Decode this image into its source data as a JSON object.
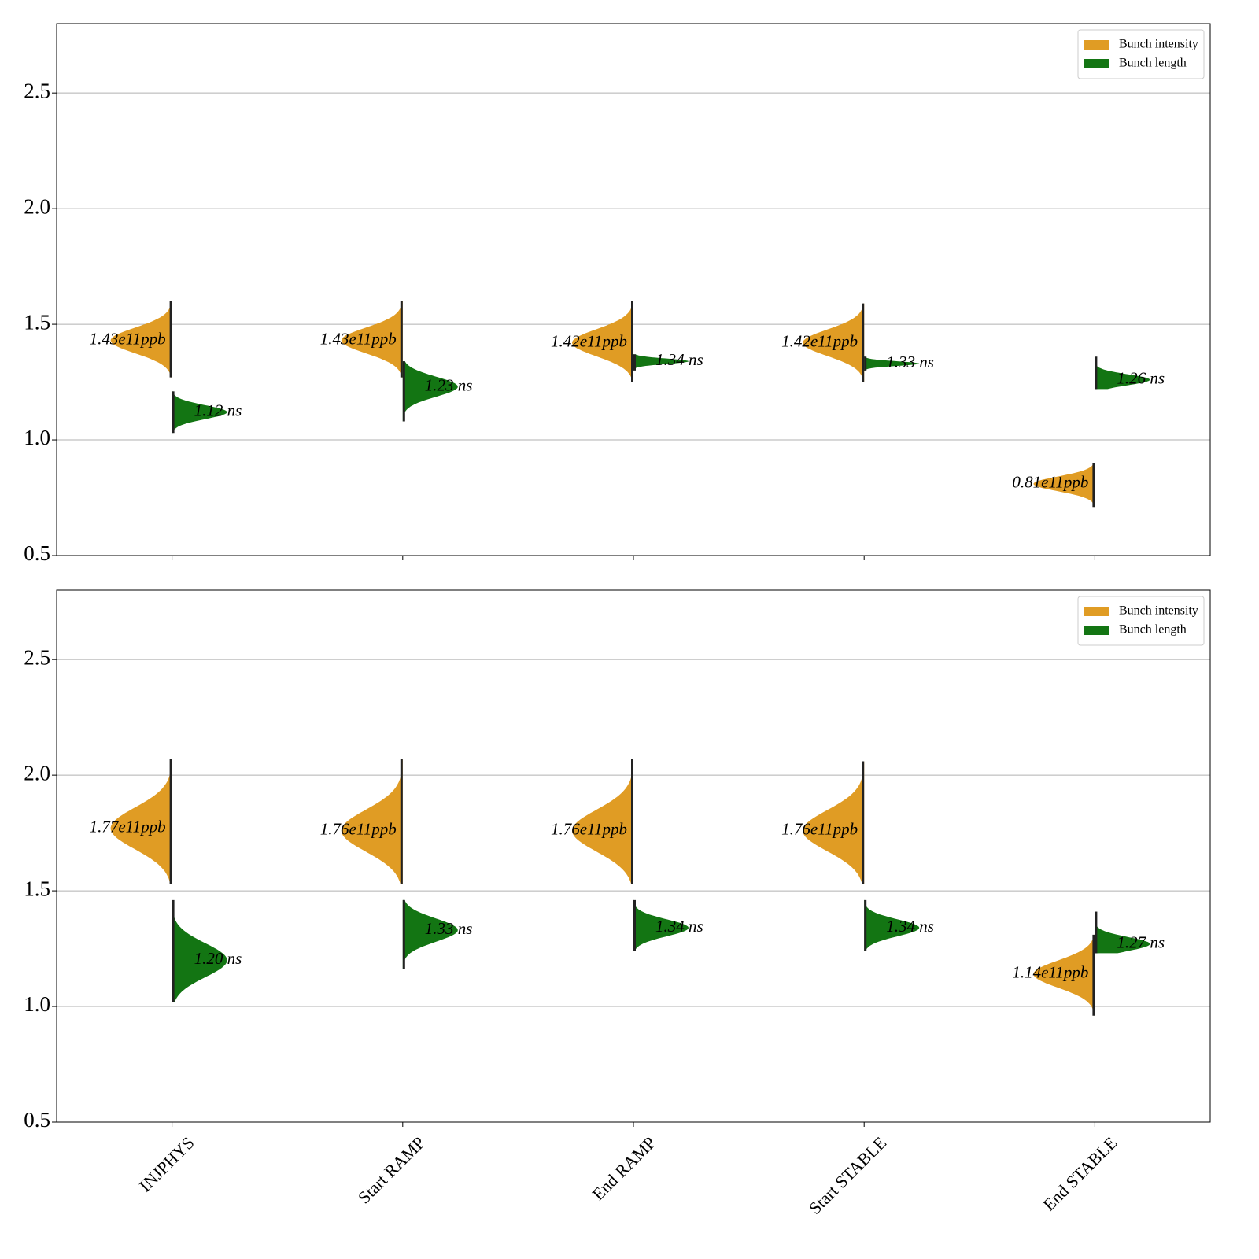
{
  "chart_data": [
    {
      "type": "violin",
      "categories": [
        null,
        null,
        null,
        null,
        null
      ],
      "series": [
        {
          "name": "Bunch intensity",
          "color": "#e09c24",
          "side": "left",
          "values": [
            1.43,
            1.43,
            1.42,
            1.42,
            0.81
          ],
          "value_labels": [
            "1.43e11ppb",
            "1.43e11ppb",
            "1.42e11ppb",
            "1.42e11ppb",
            "0.81e11ppb"
          ],
          "min": [
            1.27,
            1.27,
            1.25,
            1.25,
            0.71
          ],
          "max": [
            1.6,
            1.6,
            1.6,
            1.59,
            0.9
          ]
        },
        {
          "name": "Bunch length",
          "color": "#137513",
          "side": "right",
          "values": [
            1.12,
            1.23,
            1.34,
            1.33,
            1.26
          ],
          "value_labels": [
            "1.12 ns",
            "1.23 ns",
            "1.34 ns",
            "1.33 ns",
            "1.26 ns"
          ],
          "min": [
            1.03,
            1.08,
            1.3,
            1.3,
            1.22
          ],
          "max": [
            1.21,
            1.34,
            1.37,
            1.36,
            1.36
          ]
        }
      ],
      "ylim": [
        0.5,
        2.8
      ],
      "yticks": [
        {
          "value": 0.5,
          "label": "0.5"
        },
        {
          "value": 1,
          "label": "1.0"
        },
        {
          "value": 1.5,
          "label": "1.5"
        },
        {
          "value": 2,
          "label": "2.0"
        },
        {
          "value": 2.5,
          "label": "2.5"
        }
      ],
      "grid": true,
      "legend": "upper right"
    },
    {
      "type": "violin",
      "categories": [
        "INJPHYS",
        "Start RAMP",
        "End RAMP",
        "Start STABLE",
        "End STABLE"
      ],
      "series": [
        {
          "name": "Bunch intensity",
          "color": "#e09c24",
          "side": "left",
          "values": [
            1.77,
            1.76,
            1.76,
            1.76,
            1.14
          ],
          "value_labels": [
            "1.77e11ppb",
            "1.76e11ppb",
            "1.76e11ppb",
            "1.76e11ppb",
            "1.14e11ppb"
          ],
          "min": [
            1.53,
            1.53,
            1.53,
            1.53,
            0.96
          ],
          "max": [
            2.07,
            2.07,
            2.07,
            2.06,
            1.31
          ]
        },
        {
          "name": "Bunch length",
          "color": "#137513",
          "side": "right",
          "values": [
            1.2,
            1.33,
            1.34,
            1.34,
            1.27
          ],
          "value_labels": [
            "1.20 ns",
            "1.33 ns",
            "1.34 ns",
            "1.34 ns",
            "1.27 ns"
          ],
          "min": [
            1.02,
            1.16,
            1.24,
            1.24,
            1.23
          ],
          "max": [
            1.46,
            1.46,
            1.46,
            1.46,
            1.41
          ]
        }
      ],
      "ylim": [
        0.5,
        2.8
      ],
      "yticks": [
        {
          "value": 0.5,
          "label": "0.5"
        },
        {
          "value": 1,
          "label": "1.0"
        },
        {
          "value": 1.5,
          "label": "1.5"
        },
        {
          "value": 2,
          "label": "2.0"
        },
        {
          "value": 2.5,
          "label": "2.5"
        }
      ],
      "grid": true,
      "legend": "upper right"
    }
  ]
}
